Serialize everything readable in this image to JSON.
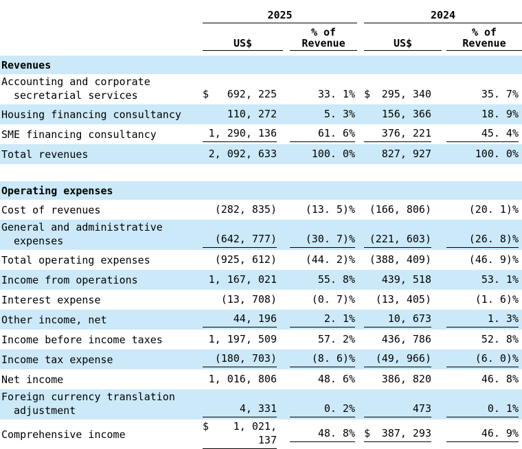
{
  "page": {
    "background": "#ffffff",
    "shade_color": "#cbe9f8",
    "text_color": "#000000",
    "rule_color": "#000000"
  },
  "table": {
    "header": {
      "year1": "2025",
      "year2": "2024",
      "amount_label": "US$",
      "pct_line1": "% of",
      "pct_line2": "Revenue"
    },
    "rows": [
      {
        "type": "section",
        "label": "Revenues",
        "shaded": true
      },
      {
        "type": "data",
        "lines": [
          "Accounting and corporate",
          "secretarial services"
        ],
        "shaded": false,
        "underline": false,
        "cells": [
          {
            "currency": "$",
            "value": "692, 225"
          },
          {
            "value": "33. 1%"
          },
          {
            "currency": "$",
            "value": "295, 340"
          },
          {
            "value": "35. 7%"
          }
        ]
      },
      {
        "type": "data",
        "lines": [
          "Housing financing consultancy"
        ],
        "shaded": true,
        "underline": false,
        "cells": [
          {
            "value": "110, 272"
          },
          {
            "value": "5. 3%"
          },
          {
            "value": "156, 366"
          },
          {
            "value": "18. 9%"
          }
        ]
      },
      {
        "type": "data",
        "lines": [
          "SME financing consultancy"
        ],
        "shaded": false,
        "underline": true,
        "cells": [
          {
            "value": "1, 290, 136"
          },
          {
            "value": "61. 6%"
          },
          {
            "value": "376, 221"
          },
          {
            "value": "45. 4%"
          }
        ]
      },
      {
        "type": "data",
        "lines": [
          "Total revenues"
        ],
        "shaded": true,
        "underline": false,
        "cells": [
          {
            "value": "2, 092, 633"
          },
          {
            "value": "100. 0%"
          },
          {
            "value": "827, 927"
          },
          {
            "value": "100. 0%"
          }
        ]
      },
      {
        "type": "spacer"
      },
      {
        "type": "section",
        "label": "Operating expenses",
        "shaded": true
      },
      {
        "type": "data",
        "lines": [
          "Cost of revenues"
        ],
        "shaded": false,
        "underline": false,
        "cells": [
          {
            "value": "(282, 835)"
          },
          {
            "value": "(13. 5)%"
          },
          {
            "value": "(166, 806)"
          },
          {
            "value": "(20. 1)%"
          }
        ]
      },
      {
        "type": "data",
        "lines": [
          "General and administrative",
          "expenses"
        ],
        "shaded": true,
        "underline": true,
        "cells": [
          {
            "value": "(642, 777)"
          },
          {
            "value": "(30. 7)%"
          },
          {
            "value": "(221, 603)"
          },
          {
            "value": "(26. 8)%"
          }
        ]
      },
      {
        "type": "data",
        "lines": [
          "Total operating expenses"
        ],
        "shaded": false,
        "underline": false,
        "cells": [
          {
            "value": "(925, 612)"
          },
          {
            "value": "(44. 2)%"
          },
          {
            "value": "(388, 409)"
          },
          {
            "value": "(46. 9)%"
          }
        ]
      },
      {
        "type": "data",
        "lines": [
          "Income from operations"
        ],
        "shaded": true,
        "underline": false,
        "cells": [
          {
            "value": "1, 167, 021"
          },
          {
            "value": "55. 8%"
          },
          {
            "value": "439, 518"
          },
          {
            "value": "53. 1%"
          }
        ]
      },
      {
        "type": "data",
        "lines": [
          "Interest expense"
        ],
        "shaded": false,
        "underline": false,
        "cells": [
          {
            "value": "(13, 708)"
          },
          {
            "value": "(0. 7)%"
          },
          {
            "value": "(13, 405)"
          },
          {
            "value": "(1. 6)%"
          }
        ]
      },
      {
        "type": "data",
        "lines": [
          "Other income, net"
        ],
        "shaded": true,
        "underline": true,
        "cells": [
          {
            "value": "44, 196"
          },
          {
            "value": "2. 1%"
          },
          {
            "value": "10, 673"
          },
          {
            "value": "1. 3%"
          }
        ]
      },
      {
        "type": "data",
        "lines": [
          "Income before income taxes"
        ],
        "shaded": false,
        "underline": false,
        "cells": [
          {
            "value": "1, 197, 509"
          },
          {
            "value": "57. 2%"
          },
          {
            "value": "436, 786"
          },
          {
            "value": "52. 8%"
          }
        ]
      },
      {
        "type": "data",
        "lines": [
          "Income tax expense"
        ],
        "shaded": true,
        "underline": true,
        "cells": [
          {
            "value": "(180, 703)"
          },
          {
            "value": "(8. 6)%"
          },
          {
            "value": "(49, 966)"
          },
          {
            "value": "(6. 0)%"
          }
        ]
      },
      {
        "type": "data",
        "lines": [
          "Net income"
        ],
        "shaded": false,
        "underline": false,
        "cells": [
          {
            "value": "1, 016, 806"
          },
          {
            "value": "48. 6%"
          },
          {
            "value": "386, 820"
          },
          {
            "value": "46. 8%"
          }
        ]
      },
      {
        "type": "data",
        "lines": [
          "Foreign currency translation",
          "adjustment"
        ],
        "shaded": true,
        "underline": true,
        "cells": [
          {
            "value": "4, 331"
          },
          {
            "value": "0. 2%"
          },
          {
            "value": "473"
          },
          {
            "value": "0. 1%"
          }
        ]
      },
      {
        "type": "data",
        "lines": [
          "Comprehensive income"
        ],
        "shaded": false,
        "underline": true,
        "cells": [
          {
            "currency": "$",
            "value": "1, 021, 137"
          },
          {
            "value": "48. 8%"
          },
          {
            "currency": "$",
            "value": "387, 293"
          },
          {
            "value": "46. 9%"
          }
        ]
      }
    ]
  }
}
